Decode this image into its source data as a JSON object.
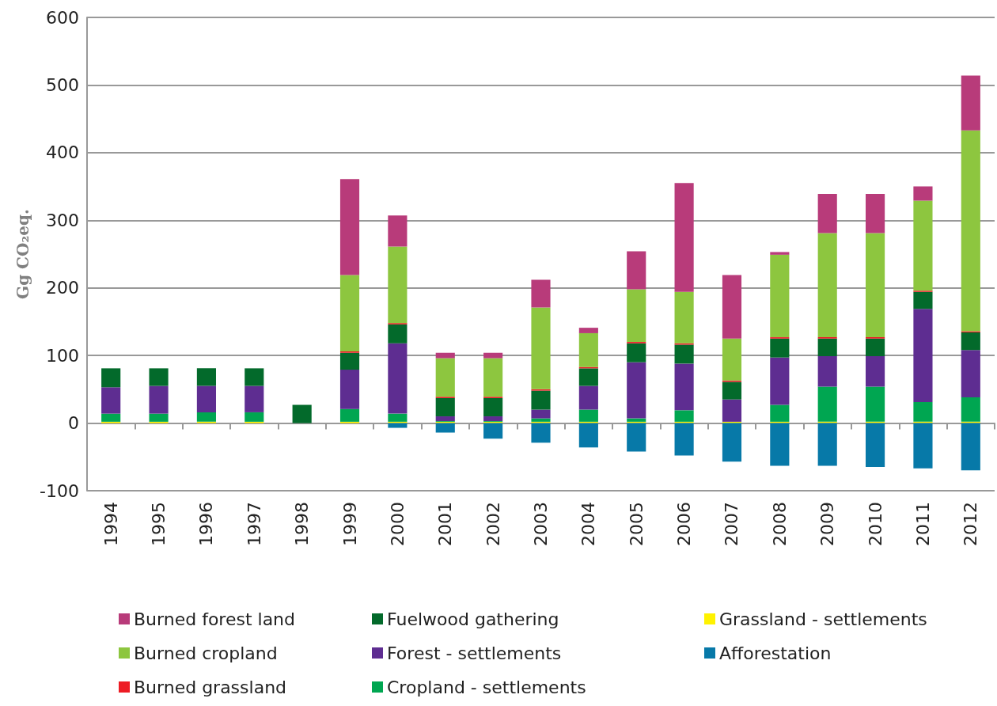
{
  "chart_data": {
    "type": "bar",
    "stacked": true,
    "ylabel": "Gg CO₂eq.",
    "categories": [
      "1994",
      "1995",
      "1996",
      "1997",
      "1998",
      "1999",
      "2000",
      "2001",
      "2002",
      "2003",
      "2004",
      "2005",
      "2006",
      "2007",
      "2008",
      "2009",
      "2010",
      "2011",
      "2012"
    ],
    "series": [
      {
        "name": "Grassland - settlements",
        "color": "#fff200",
        "values": [
          2,
          2,
          2,
          2,
          null,
          2,
          2,
          2,
          2,
          2,
          2,
          2,
          2,
          2,
          2,
          2,
          2,
          2,
          2
        ]
      },
      {
        "name": "Cropland - settlements",
        "color": "#00a651",
        "values": [
          12,
          12,
          14,
          14,
          null,
          19,
          12,
          1,
          1,
          5,
          18,
          5,
          17,
          null,
          25,
          52,
          52,
          29,
          36
        ]
      },
      {
        "name": "Forest - settlements",
        "color": "#5e2d91",
        "values": [
          39,
          41,
          39,
          39,
          null,
          58,
          104,
          7,
          7,
          13,
          35,
          83,
          69,
          33,
          70,
          45,
          45,
          138,
          70
        ]
      },
      {
        "name": "Fuelwood gathering",
        "color": "#036a2b",
        "values": [
          28,
          26,
          26,
          26,
          27,
          25,
          28,
          27,
          27,
          28,
          26,
          28,
          28,
          26,
          28,
          26,
          26,
          25,
          26
        ]
      },
      {
        "name": "Burned grassland",
        "color": "#ed1c24",
        "values": [
          null,
          null,
          null,
          null,
          null,
          2,
          2,
          2,
          2,
          2,
          2,
          2,
          2,
          2,
          2,
          2,
          2,
          2,
          2
        ]
      },
      {
        "name": "Burned cropland",
        "color": "#8dc63f",
        "values": [
          null,
          null,
          null,
          null,
          null,
          113,
          113,
          57,
          57,
          121,
          50,
          78,
          76,
          62,
          122,
          154,
          154,
          133,
          297
        ]
      },
      {
        "name": "Burned forest land",
        "color": "#b83b7a",
        "values": [
          null,
          null,
          null,
          null,
          null,
          142,
          46,
          8,
          8,
          41,
          8,
          56,
          161,
          94,
          4,
          58,
          58,
          21,
          81
        ]
      },
      {
        "name": "Afforestation",
        "color": "#0779a8",
        "values": [
          null,
          null,
          null,
          null,
          null,
          null,
          -7,
          -14,
          -23,
          -29,
          -36,
          -42,
          -48,
          -57,
          -63,
          -63,
          -65,
          -67,
          -70
        ]
      }
    ],
    "ylim": [
      -100,
      600
    ],
    "yticks": [
      -100,
      0,
      100,
      200,
      300,
      400,
      500,
      600
    ],
    "grid": "y",
    "legend": "bottom"
  }
}
